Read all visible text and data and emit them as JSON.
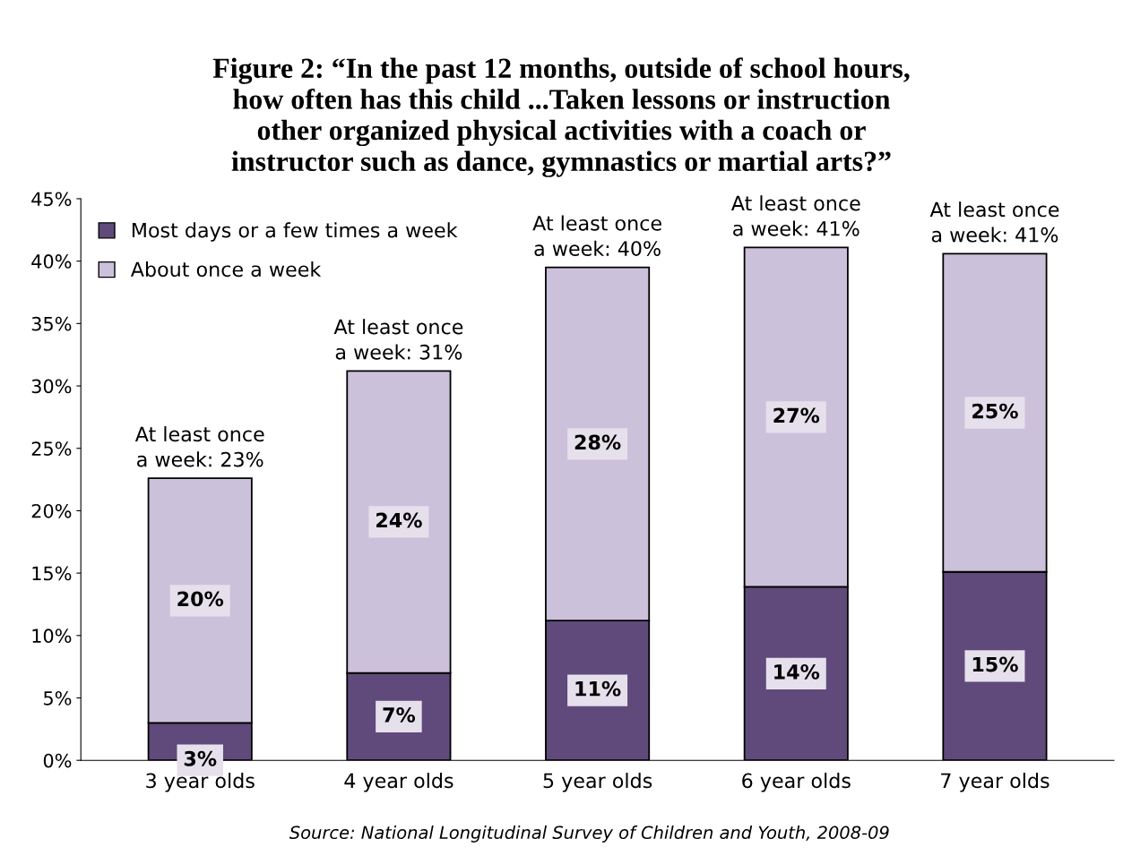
{
  "chart_data": {
    "type": "bar",
    "stacked": true,
    "title": "Figure 2: “In the past 12 months, outside of school hours,\nhow often has this child ...Taken lessons or instruction\nother organized physical activities with a coach or\ninstructor such as dance, gymnastics or martial arts?”",
    "categories": [
      "3 year olds",
      "4 year olds",
      "5 year olds",
      "6 year olds",
      "7 year olds"
    ],
    "series": [
      {
        "name": "Most days or a few times a week",
        "color": "#604a7b",
        "values": [
          3.0,
          7.0,
          11.2,
          13.9,
          15.1
        ],
        "value_labels": [
          "3%",
          "7%",
          "11%",
          "14%",
          "15%"
        ]
      },
      {
        "name": "About once a week",
        "color": "#ccc1da",
        "values": [
          19.6,
          24.2,
          28.3,
          27.2,
          25.5
        ],
        "value_labels": [
          "20%",
          "24%",
          "28%",
          "27%",
          "25%"
        ]
      }
    ],
    "totals": [
      "At least once\na week: 23%",
      "At least once\na week: 31%",
      "At least once\na week: 40%",
      "At least once\na week: 41%",
      "At least once\na week: 41%"
    ],
    "ylim": [
      0,
      45
    ],
    "yticks": [
      {
        "value": 0,
        "label": "0%"
      },
      {
        "value": 5,
        "label": "5%"
      },
      {
        "value": 10,
        "label": "10%"
      },
      {
        "value": 15,
        "label": "15%"
      },
      {
        "value": 20,
        "label": "20%"
      },
      {
        "value": 25,
        "label": "25%"
      },
      {
        "value": 30,
        "label": "30%"
      },
      {
        "value": 35,
        "label": "35%"
      },
      {
        "value": 40,
        "label": "40%"
      },
      {
        "value": 45,
        "label": "45%"
      }
    ],
    "grid": false,
    "legend": "top left",
    "annotations": [
      "Source: National Longitudinal Survey of Children and Youth, 2008-09"
    ]
  }
}
